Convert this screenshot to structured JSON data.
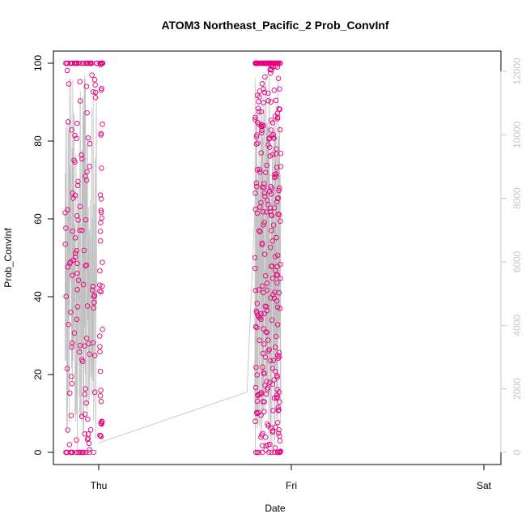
{
  "chart_data": {
    "type": "scatter",
    "title": "ATOM3 Northeast_Pacific_2 Prob_ConvInf",
    "xlabel": "Date",
    "ylabel": "Prob_ConvInf",
    "x_ticks": [
      "Thu",
      "Fri",
      "Sat"
    ],
    "ylim": [
      0,
      100
    ],
    "y_ticks": [
      "0",
      "20",
      "40",
      "60",
      "80",
      "100"
    ],
    "y2_ticks": [
      "0",
      "2000",
      "4000",
      "6000",
      "8000",
      "10000",
      "12000"
    ],
    "y2lim": [
      0,
      12500
    ],
    "grid": false,
    "colors": {
      "points": "#e6007e",
      "line": "#c0c0c0",
      "right_axis": "#c8c8c8",
      "axis": "#000000"
    },
    "series": [
      {
        "type": "points",
        "clusters": [
          {
            "x_start": -0.175,
            "x_end": -0.01,
            "count": 150,
            "seed": 11
          },
          {
            "x_start": 0.005,
            "x_end": 0.02,
            "count": 45,
            "seed": 23
          },
          {
            "x_start": 0.81,
            "x_end": 0.945,
            "count": 320,
            "seed": 37
          }
        ]
      },
      {
        "type": "line",
        "clusters": [
          {
            "x_start": -0.175,
            "x_end": -0.01,
            "seed": 5
          },
          {
            "x_start": 0.81,
            "x_end": 0.945,
            "seed": 9
          }
        ],
        "connectors": [
          [
            0,
            300
          ],
          [
            0.77,
            1900
          ],
          [
            0.82,
            9000
          ],
          [
            0.93,
            8600
          ]
        ]
      }
    ]
  }
}
